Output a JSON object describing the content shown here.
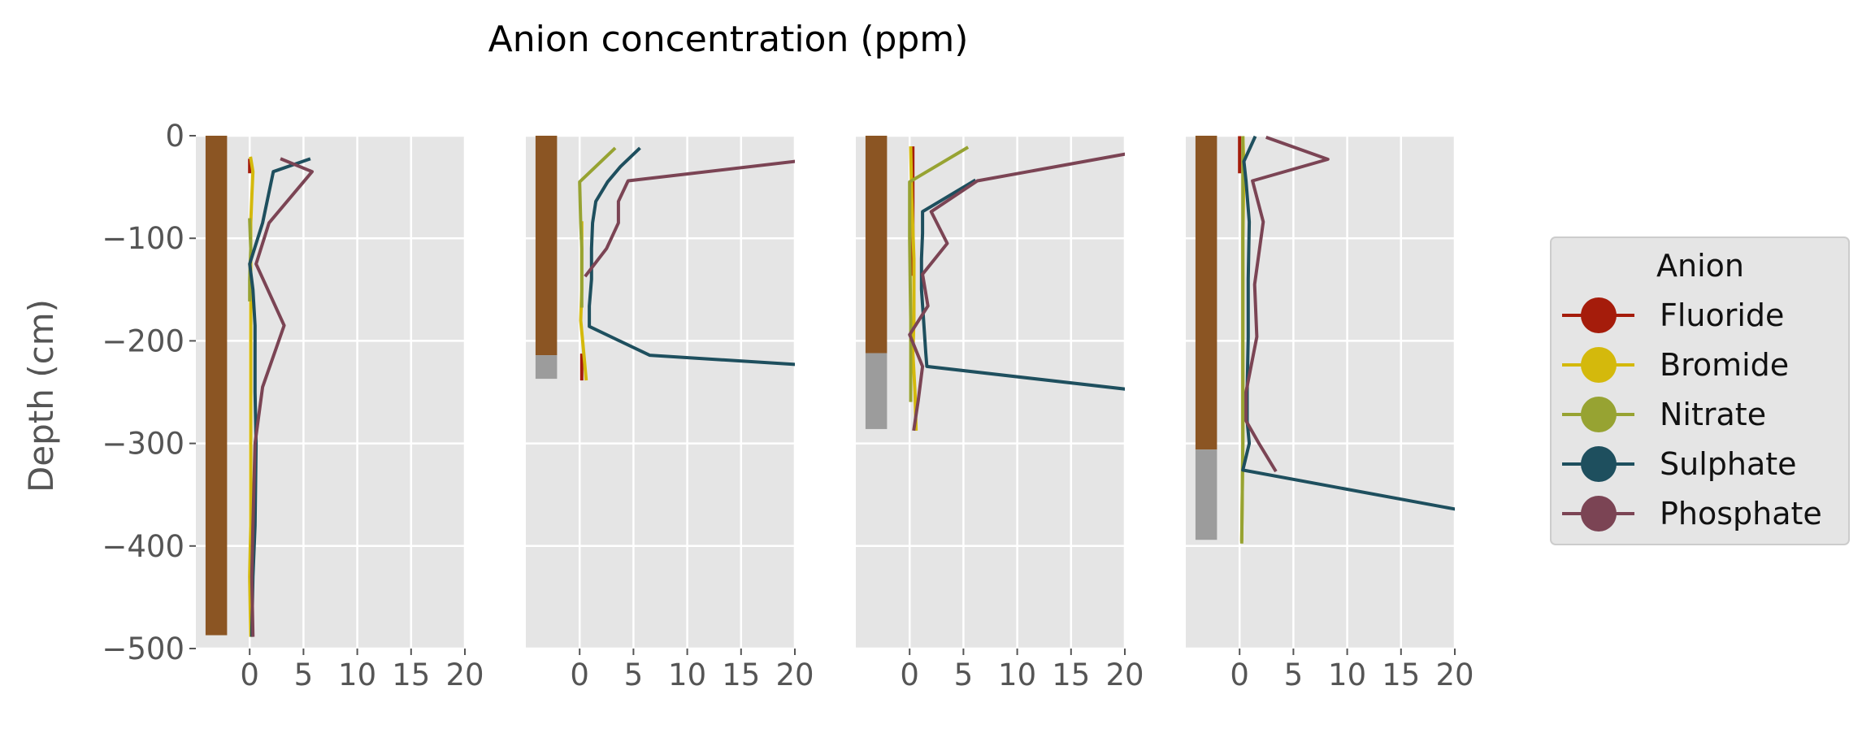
{
  "chart_data": {
    "type": "line",
    "title": "Anion concentration (ppm)",
    "ylabel": "Depth (cm)",
    "xlabel": "",
    "ylim": [
      -500,
      0
    ],
    "xlim": [
      -5,
      20
    ],
    "xticks": [
      0,
      5,
      10,
      15,
      20
    ],
    "yticks": [
      0,
      -100,
      -200,
      -300,
      -400,
      -500
    ],
    "grid": true,
    "legend": {
      "title": "Anion",
      "placement": "right",
      "items": [
        {
          "name": "Fluoride",
          "color": "#a51c0b"
        },
        {
          "name": "Bromide",
          "color": "#d4b90c"
        },
        {
          "name": "Nitrate",
          "color": "#97a332"
        },
        {
          "name": "Sulphate",
          "color": "#1e4f5e"
        },
        {
          "name": "Phosphate",
          "color": "#7b4454"
        }
      ]
    },
    "soil_colors": {
      "upper": "#8b5523",
      "lower": "#9c9c9c"
    },
    "panels": [
      {
        "soil": [
          {
            "top": 0,
            "bottom": -487,
            "kind": "upper"
          }
        ],
        "series": {
          "Fluoride": [
            [
              0,
              -24
            ],
            [
              0,
              -35
            ]
          ],
          "Bromide": [
            [
              0.1,
              -22
            ],
            [
              0.3,
              -35
            ],
            [
              0.2,
              -60
            ],
            [
              0.1,
              -85
            ],
            [
              0.1,
              -150
            ],
            [
              0.1,
              -200
            ],
            [
              0.1,
              -250
            ],
            [
              0.1,
              -380
            ],
            [
              0,
              -430
            ],
            [
              0.1,
              -487
            ]
          ],
          "Nitrate": [
            [
              0,
              -82
            ],
            [
              0.1,
              -110
            ],
            [
              0,
              -140
            ],
            [
              0,
              -160
            ]
          ],
          "Sulphate": [
            [
              5.5,
              -23
            ],
            [
              2.2,
              -35
            ],
            [
              1.2,
              -85
            ],
            [
              0,
              -125
            ],
            [
              0.3,
              -150
            ],
            [
              0.5,
              -185
            ],
            [
              0.5,
              -250
            ],
            [
              0.6,
              -300
            ],
            [
              0.5,
              -380
            ],
            [
              0.3,
              -430
            ],
            [
              0.2,
              -487
            ]
          ],
          "Phosphate": [
            [
              3,
              -23
            ],
            [
              5.8,
              -35
            ],
            [
              1.8,
              -85
            ],
            [
              0.6,
              -125
            ],
            [
              3.2,
              -185
            ],
            [
              1.2,
              -245
            ],
            [
              0.5,
              -300
            ],
            [
              0.4,
              -340
            ],
            [
              0.3,
              -380
            ],
            [
              0.2,
              -430
            ],
            [
              0.3,
              -487
            ]
          ]
        }
      },
      {
        "soil": [
          {
            "top": 0,
            "bottom": -214,
            "kind": "upper"
          },
          {
            "top": -214,
            "bottom": -237,
            "kind": "lower"
          }
        ],
        "series": {
          "Fluoride": [
            [
              0.2,
              -214
            ],
            [
              0.2,
              -237
            ]
          ],
          "Bromide": [
            [
              0.2,
              -85
            ],
            [
              0.2,
              -150
            ],
            [
              0.1,
              -180
            ],
            [
              0.4,
              -214
            ],
            [
              0.6,
              -237
            ]
          ],
          "Nitrate": [
            [
              3.2,
              -13
            ],
            [
              0,
              -45
            ],
            [
              0.1,
              -85
            ],
            [
              0.2,
              -110
            ],
            [
              0.2,
              -140
            ],
            [
              0.2,
              -166
            ]
          ],
          "Sulphate": [
            [
              5.5,
              -13
            ],
            [
              3.8,
              -30
            ],
            [
              2.6,
              -45
            ],
            [
              1.5,
              -64
            ],
            [
              1.2,
              -85
            ],
            [
              1.1,
              -110
            ],
            [
              1.1,
              -140
            ],
            [
              0.9,
              -166
            ],
            [
              0.9,
              -186
            ],
            [
              6.5,
              -214
            ],
            [
              20,
              -223
            ]
          ],
          "Phosphate": [
            [
              20,
              -25
            ],
            [
              4.5,
              -44
            ],
            [
              3.6,
              -64
            ],
            [
              3.6,
              -85
            ],
            [
              2.5,
              -110
            ],
            [
              0.6,
              -136
            ]
          ]
        }
      },
      {
        "soil": [
          {
            "top": 0,
            "bottom": -212,
            "kind": "upper"
          },
          {
            "top": -212,
            "bottom": -286,
            "kind": "lower"
          }
        ],
        "series": {
          "Fluoride": [
            [
              0.3,
              -12
            ],
            [
              0.3,
              -135
            ]
          ],
          "Bromide": [
            [
              0.1,
              -12
            ],
            [
              0.2,
              -60
            ],
            [
              0.4,
              -120
            ],
            [
              0.4,
              -180
            ],
            [
              0.3,
              -212
            ],
            [
              0.5,
              -250
            ],
            [
              0.6,
              -286
            ]
          ],
          "Nitrate": [
            [
              5.3,
              -12
            ],
            [
              0,
              -45
            ],
            [
              0,
              -100
            ],
            [
              0.1,
              -180
            ],
            [
              0.1,
              -212
            ],
            [
              0.1,
              -258
            ]
          ],
          "Sulphate": [
            [
              6,
              -44
            ],
            [
              1.2,
              -74
            ],
            [
              1.2,
              -95
            ],
            [
              1.1,
              -120
            ],
            [
              1.1,
              -150
            ],
            [
              1.3,
              -180
            ],
            [
              1.5,
              -212
            ],
            [
              1.6,
              -225
            ],
            [
              20,
              -247
            ]
          ],
          "Phosphate": [
            [
              20,
              -18
            ],
            [
              6.3,
              -44
            ],
            [
              2,
              -74
            ],
            [
              3.5,
              -105
            ],
            [
              1.2,
              -135
            ],
            [
              1.7,
              -166
            ],
            [
              0,
              -194
            ],
            [
              1.2,
              -225
            ],
            [
              0.8,
              -258
            ],
            [
              0.4,
              -286
            ]
          ]
        }
      },
      {
        "soil": [
          {
            "top": 0,
            "bottom": -306,
            "kind": "upper"
          },
          {
            "top": -306,
            "bottom": -394,
            "kind": "lower"
          }
        ],
        "series": {
          "Fluoride": [
            [
              0,
              -2
            ],
            [
              0,
              -35
            ]
          ],
          "Bromide": [
            [
              0.3,
              -2
            ],
            [
              0.4,
              -30
            ],
            [
              0.3,
              -100
            ],
            [
              0.3,
              -200
            ],
            [
              0.3,
              -300
            ],
            [
              0.2,
              -394
            ]
          ],
          "Nitrate": [
            [
              0.3,
              -2
            ],
            [
              0.3,
              -100
            ],
            [
              0.3,
              -200
            ],
            [
              0.3,
              -300
            ],
            [
              0.2,
              -396
            ]
          ],
          "Sulphate": [
            [
              1.4,
              -2
            ],
            [
              0.4,
              -25
            ],
            [
              0.6,
              -44
            ],
            [
              0.9,
              -84
            ],
            [
              0.8,
              -140
            ],
            [
              0.8,
              -196
            ],
            [
              0.7,
              -250
            ],
            [
              0.7,
              -278
            ],
            [
              0.9,
              -300
            ],
            [
              0.3,
              -326
            ],
            [
              20,
              -364
            ]
          ],
          "Phosphate": [
            [
              2.6,
              -2
            ],
            [
              8.2,
              -23
            ],
            [
              1.2,
              -44
            ],
            [
              2.2,
              -84
            ],
            [
              1.4,
              -145
            ],
            [
              1.6,
              -196
            ],
            [
              0.6,
              -250
            ],
            [
              0.6,
              -278
            ],
            [
              1.8,
              -300
            ],
            [
              3.3,
              -326
            ]
          ]
        }
      }
    ]
  }
}
